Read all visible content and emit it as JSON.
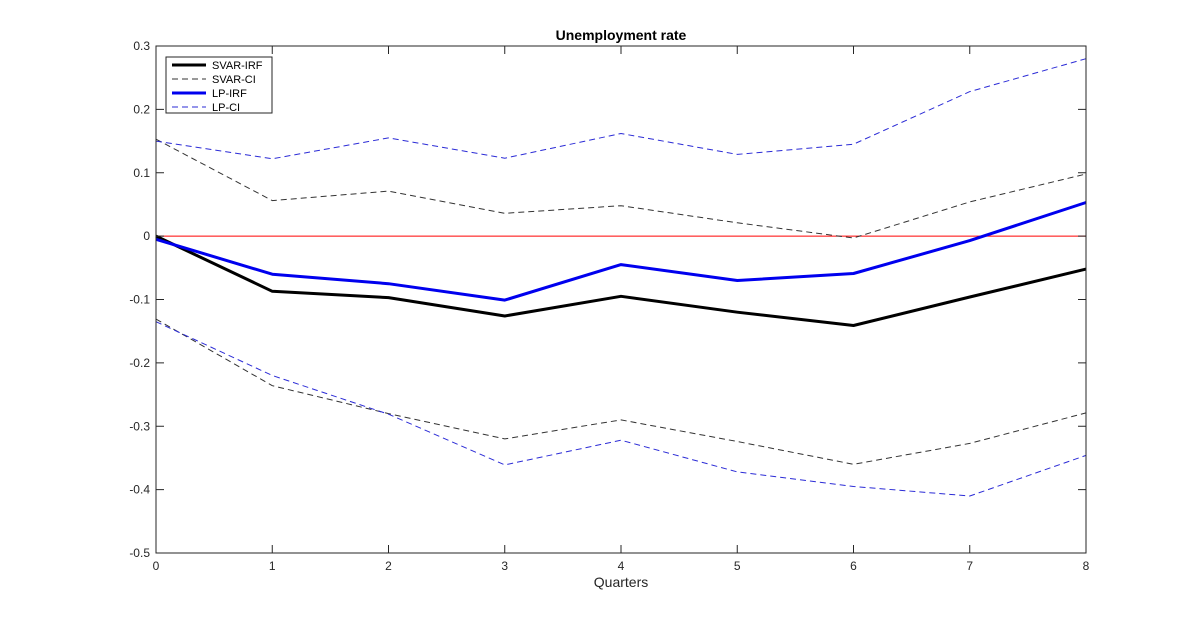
{
  "chart_data": {
    "type": "line",
    "title": "Unemployment rate",
    "xlabel": "Quarters",
    "ylabel": "",
    "xlim": [
      0,
      8
    ],
    "ylim": [
      -0.5,
      0.3
    ],
    "x": [
      0,
      1,
      2,
      3,
      4,
      5,
      6,
      7,
      8
    ],
    "xticks": [
      "0",
      "1",
      "2",
      "3",
      "4",
      "5",
      "6",
      "7",
      "8"
    ],
    "yticks": [
      "-0.5",
      "-0.4",
      "-0.3",
      "-0.2",
      "-0.1",
      "0",
      "0.1",
      "0.2",
      "0.3"
    ],
    "ytick_values": [
      -0.5,
      -0.4,
      -0.3,
      -0.2,
      -0.1,
      0,
      0.1,
      0.2,
      0.3
    ],
    "grid": false,
    "legend_position": "top-left",
    "reference_line": {
      "y": 0,
      "color": "#ff0000"
    },
    "series": [
      {
        "name": "SVAR-IRF",
        "style": "solid",
        "weight": "bold",
        "color": "#000000",
        "values": [
          0.0,
          -0.087,
          -0.097,
          -0.126,
          -0.095,
          -0.12,
          -0.141,
          -0.096,
          -0.052
        ]
      },
      {
        "name": "SVAR-CI",
        "style": "dashed",
        "weight": "thin",
        "color": "#333333",
        "values": [
          0.153,
          0.056,
          0.071,
          0.036,
          0.048,
          0.021,
          -0.003,
          0.054,
          0.098
        ],
        "lower": [
          -0.131,
          -0.236,
          -0.28,
          -0.32,
          -0.29,
          -0.324,
          -0.36,
          -0.327,
          -0.279
        ]
      },
      {
        "name": "LP-IRF",
        "style": "solid",
        "weight": "bold",
        "color": "#0000ee",
        "values": [
          -0.005,
          -0.06,
          -0.075,
          -0.101,
          -0.045,
          -0.07,
          -0.059,
          -0.007,
          0.053
        ]
      },
      {
        "name": "LP-CI",
        "style": "dashed",
        "weight": "thin",
        "color": "#2b2bd6",
        "values": [
          0.15,
          0.122,
          0.155,
          0.123,
          0.162,
          0.129,
          0.145,
          0.228,
          0.28
        ],
        "lower": [
          -0.135,
          -0.22,
          -0.281,
          -0.361,
          -0.322,
          -0.372,
          -0.395,
          -0.41,
          -0.346
        ]
      }
    ]
  }
}
